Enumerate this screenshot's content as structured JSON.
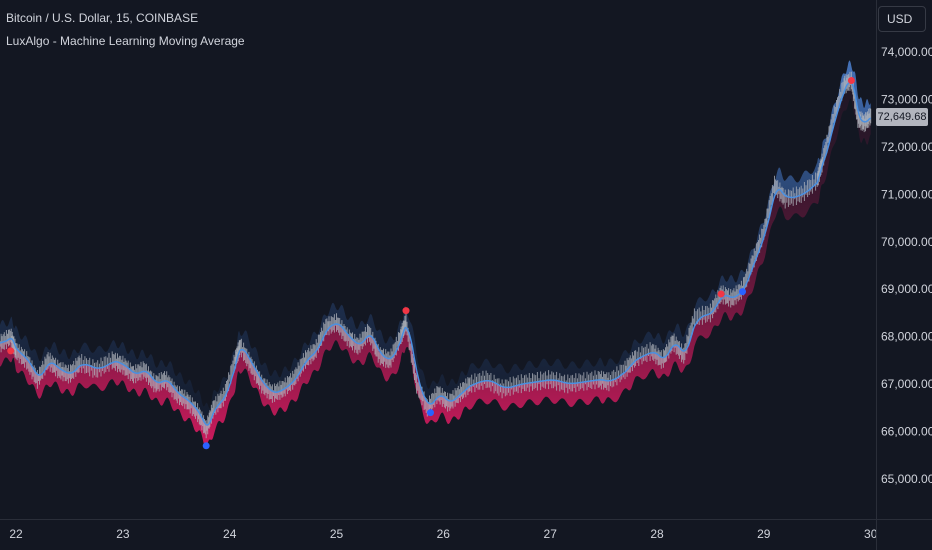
{
  "header": {
    "title": "Bitcoin / U.S. Dollar, 15, COINBASE",
    "indicator": "LuxAlgo - Machine Learning Moving Average"
  },
  "currency_button": "USD",
  "price_tag": "72,649.68",
  "colors": {
    "background": "#131722",
    "upper_band": "#3a6cc0",
    "lower_band": "#c2185b",
    "ma_line": "#4a90e2",
    "candles": "#b2b5be",
    "bull_signal": "#2962ff",
    "bear_signal": "#f23645"
  },
  "chart_data": {
    "type": "line",
    "title": "Bitcoin / U.S. Dollar, 15, COINBASE",
    "subtitle": "LuxAlgo - Machine Learning Moving Average",
    "x_ticks": [
      "22",
      "23",
      "24",
      "25",
      "26",
      "27",
      "28",
      "29",
      "30"
    ],
    "y_ticks": [
      "65,000.00",
      "66,000.00",
      "67,000.00",
      "68,000.00",
      "69,000.00",
      "70,000.00",
      "71,000.00",
      "72,000.00",
      "73,000.00",
      "74,000.00"
    ],
    "ylim": [
      64100,
      75000
    ],
    "xlim": [
      21.85,
      30.05
    ],
    "last_price": 72649.68,
    "price_series": [
      [
        21.85,
        67850
      ],
      [
        21.95,
        68000
      ],
      [
        22.0,
        67700
      ],
      [
        22.1,
        67500
      ],
      [
        22.2,
        67100
      ],
      [
        22.3,
        67500
      ],
      [
        22.4,
        67300
      ],
      [
        22.5,
        67200
      ],
      [
        22.6,
        67450
      ],
      [
        22.75,
        67300
      ],
      [
        22.9,
        67500
      ],
      [
        23.0,
        67400
      ],
      [
        23.1,
        67200
      ],
      [
        23.2,
        67300
      ],
      [
        23.3,
        67000
      ],
      [
        23.4,
        67100
      ],
      [
        23.5,
        66800
      ],
      [
        23.6,
        66650
      ],
      [
        23.7,
        66400
      ],
      [
        23.78,
        66050
      ],
      [
        23.85,
        66500
      ],
      [
        23.95,
        66750
      ],
      [
        24.05,
        67500
      ],
      [
        24.1,
        67800
      ],
      [
        24.2,
        67400
      ],
      [
        24.3,
        67000
      ],
      [
        24.4,
        66800
      ],
      [
        24.5,
        66900
      ],
      [
        24.6,
        67100
      ],
      [
        24.7,
        67500
      ],
      [
        24.8,
        67700
      ],
      [
        24.9,
        68200
      ],
      [
        25.0,
        68300
      ],
      [
        25.1,
        68000
      ],
      [
        25.2,
        67800
      ],
      [
        25.3,
        68100
      ],
      [
        25.4,
        67600
      ],
      [
        25.5,
        67500
      ],
      [
        25.6,
        68000
      ],
      [
        25.65,
        68300
      ],
      [
        25.75,
        67000
      ],
      [
        25.85,
        66500
      ],
      [
        25.95,
        66800
      ],
      [
        26.05,
        66600
      ],
      [
        26.15,
        66800
      ],
      [
        26.25,
        67000
      ],
      [
        26.4,
        67100
      ],
      [
        26.55,
        66900
      ],
      [
        26.7,
        67000
      ],
      [
        26.85,
        67050
      ],
      [
        27.0,
        67100
      ],
      [
        27.15,
        67000
      ],
      [
        27.3,
        67050
      ],
      [
        27.45,
        67100
      ],
      [
        27.55,
        67050
      ],
      [
        27.7,
        67300
      ],
      [
        27.8,
        67550
      ],
      [
        27.95,
        67700
      ],
      [
        28.05,
        67500
      ],
      [
        28.15,
        67900
      ],
      [
        28.25,
        67600
      ],
      [
        28.35,
        68400
      ],
      [
        28.5,
        68500
      ],
      [
        28.6,
        68900
      ],
      [
        28.7,
        68800
      ],
      [
        28.8,
        69000
      ],
      [
        28.9,
        69600
      ],
      [
        29.0,
        70200
      ],
      [
        29.1,
        71200
      ],
      [
        29.2,
        70900
      ],
      [
        29.35,
        71000
      ],
      [
        29.5,
        71300
      ],
      [
        29.55,
        71700
      ],
      [
        29.65,
        72600
      ],
      [
        29.75,
        73300
      ],
      [
        29.82,
        73400
      ],
      [
        29.88,
        72600
      ],
      [
        29.94,
        72500
      ],
      [
        30.0,
        72650
      ]
    ],
    "signals": [
      {
        "type": "bearish",
        "x": 21.95,
        "y": 67700
      },
      {
        "type": "bullish",
        "x": 23.78,
        "y": 65700
      },
      {
        "type": "bearish",
        "x": 25.65,
        "y": 68550
      },
      {
        "type": "bullish",
        "x": 25.88,
        "y": 66400
      },
      {
        "type": "bearish",
        "x": 28.6,
        "y": 68900
      },
      {
        "type": "bullish",
        "x": 28.8,
        "y": 68950
      },
      {
        "type": "bearish",
        "x": 29.82,
        "y": 73400
      }
    ]
  }
}
